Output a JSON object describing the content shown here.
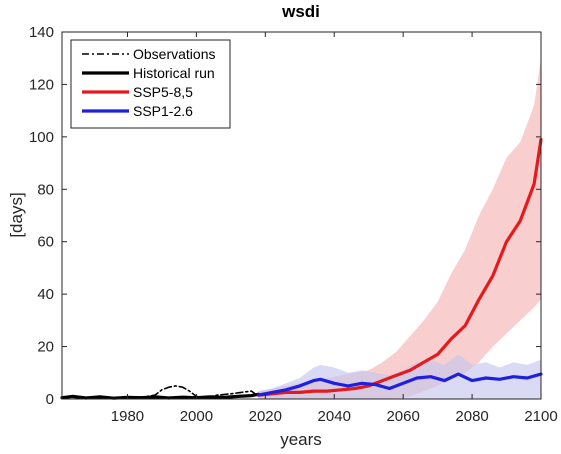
{
  "chart_data": {
    "type": "line",
    "title": "wsdi",
    "xlabel": "years",
    "ylabel": "[days]",
    "xlim": [
      1961,
      2100
    ],
    "ylim": [
      0,
      140
    ],
    "xticks": [
      1980,
      2000,
      2020,
      2040,
      2060,
      2080,
      2100
    ],
    "yticks": [
      0,
      20,
      40,
      60,
      80,
      100,
      120,
      140
    ],
    "grid": false,
    "legend_position": "top-left",
    "series": [
      {
        "name": "Observations",
        "style": "dash-dot",
        "color": "#000000",
        "x": [
          1961,
          1965,
          1970,
          1975,
          1980,
          1985,
          1988,
          1990,
          1992,
          1994,
          1996,
          1998,
          2000,
          2003,
          2006,
          2010,
          2013,
          2016,
          2018
        ],
        "y": [
          0.5,
          0.8,
          0.3,
          0.6,
          0.4,
          0.8,
          1.5,
          3.5,
          4.5,
          5,
          4.5,
          3,
          1,
          0.5,
          1.5,
          2,
          2.5,
          3,
          1
        ]
      },
      {
        "name": "Historical run",
        "style": "solid",
        "color": "#000000",
        "x": [
          1961,
          1964,
          1968,
          1972,
          1976,
          1980,
          1984,
          1988,
          1992,
          1996,
          2000,
          2004,
          2008,
          2012,
          2016,
          2018
        ],
        "y": [
          0.5,
          1,
          0.4,
          0.8,
          0.3,
          0.6,
          0.5,
          0.8,
          0.4,
          0.7,
          0.5,
          0.8,
          0.6,
          1,
          1.3,
          1.8
        ]
      },
      {
        "name": "SSP5-8,5",
        "style": "solid",
        "color": "#e41a1c",
        "x": [
          2018,
          2022,
          2026,
          2030,
          2034,
          2038,
          2042,
          2046,
          2050,
          2054,
          2058,
          2062,
          2066,
          2070,
          2074,
          2078,
          2082,
          2086,
          2090,
          2094,
          2098,
          2100
        ],
        "y": [
          1.5,
          2,
          2.5,
          2.5,
          3,
          3,
          3.5,
          4,
          5,
          7,
          9,
          11,
          14,
          17,
          23,
          28,
          38,
          47,
          60,
          68,
          82,
          99
        ],
        "band_lower": [
          0,
          0,
          0,
          0,
          0,
          0,
          0,
          0,
          0,
          0,
          0,
          1,
          3,
          5,
          8,
          10,
          14,
          20,
          25,
          30,
          35,
          38
        ],
        "band_upper": [
          3,
          4,
          5,
          6,
          7,
          8,
          9,
          10,
          11,
          14,
          18,
          24,
          30,
          37,
          48,
          57,
          70,
          80,
          92,
          98,
          112,
          130
        ],
        "band_color": "#f4b4b4"
      },
      {
        "name": "SSP1-2.6",
        "style": "solid",
        "color": "#1f1fe0",
        "x": [
          2018,
          2022,
          2026,
          2030,
          2034,
          2036,
          2040,
          2044,
          2048,
          2052,
          2056,
          2060,
          2064,
          2068,
          2072,
          2076,
          2080,
          2084,
          2088,
          2092,
          2096,
          2100
        ],
        "y": [
          1.5,
          2.5,
          3.5,
          5,
          7,
          7.5,
          6,
          5,
          6,
          5.5,
          4,
          6,
          8,
          8.5,
          7,
          9.5,
          7,
          8,
          7.5,
          8.5,
          8,
          9.5
        ],
        "band_lower": [
          0,
          0,
          0,
          0,
          0,
          0,
          0,
          0,
          0,
          0,
          0,
          0,
          0,
          0,
          0,
          0,
          0,
          0,
          0,
          0,
          0,
          0
        ],
        "band_upper": [
          3,
          4,
          6,
          8,
          12,
          13,
          12,
          10,
          11,
          10,
          9,
          11,
          14,
          15,
          13,
          17,
          13,
          14,
          12,
          14,
          13,
          15
        ],
        "band_color": "#c6c6ee"
      }
    ]
  }
}
